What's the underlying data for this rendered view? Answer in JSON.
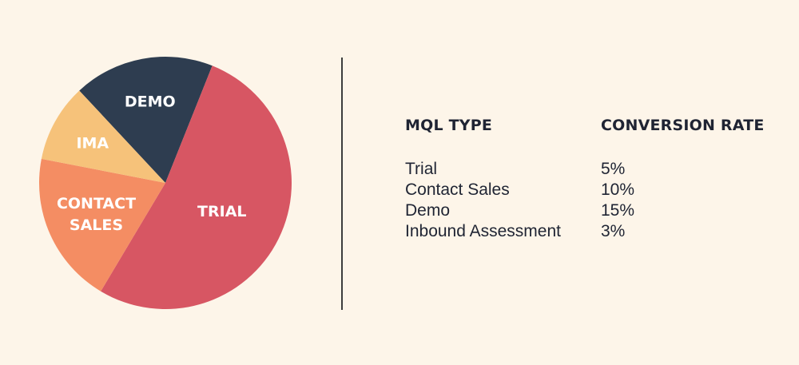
{
  "chart_data": {
    "type": "pie",
    "slices": [
      {
        "label": "DEMO",
        "value": 18,
        "color": "#2e3d50"
      },
      {
        "label": "TRIAL",
        "value": 52.5,
        "color": "#d75663"
      },
      {
        "label": "CONTACT SALES",
        "value": 19.5,
        "color": "#f48d63"
      },
      {
        "label": "IMA",
        "value": 10,
        "color": "#f6c27a"
      }
    ]
  },
  "table": {
    "headers": {
      "type": "MQL TYPE",
      "rate": "CONVERSION RATE"
    },
    "rows": [
      {
        "type": "Trial",
        "rate": "5%"
      },
      {
        "type": "Contact Sales",
        "rate": "10%"
      },
      {
        "type": "Demo",
        "rate": "15%"
      },
      {
        "type": "Inbound Assessment",
        "rate": "3%"
      }
    ]
  }
}
